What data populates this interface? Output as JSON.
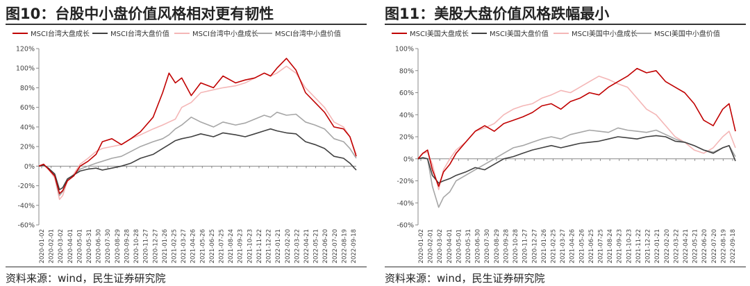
{
  "charts": [
    {
      "id": "left",
      "title": "图10：台股中小盘价值风格相对更有韧性",
      "source": "资料来源：wind，民生证券研究院"
    },
    {
      "id": "right",
      "title": "图11：美股大盘价值风格跌幅最小",
      "source": "资料来源：wind，民生证券研究院"
    }
  ],
  "chart_data": [
    {
      "type": "line",
      "title": "图10：台股中小盘价值风格相对更有韧性",
      "ylim": [
        -60,
        120
      ],
      "y_ticks": [
        "-60%",
        "-40%",
        "-20%",
        "0%",
        "20%",
        "40%",
        "60%",
        "80%",
        "100%",
        "120%"
      ],
      "y_tick_values": [
        -60,
        -40,
        -20,
        0,
        20,
        40,
        60,
        80,
        100,
        120
      ],
      "legend_position": "top",
      "grid": false,
      "x_ticks": [
        "2020-01-02",
        "2020-02-01",
        "2020-03-02",
        "2020-04-01",
        "2020-05-01",
        "2020-05-31",
        "2020-06-30",
        "2020-07-30",
        "2020-08-29",
        "2020-09-28",
        "2020-10-28",
        "2020-11-27",
        "2020-12-27",
        "2021-01-26",
        "2021-02-25",
        "2021-03-27",
        "2021-04-26",
        "2021-05-26",
        "2021-06-25",
        "2021-07-25",
        "2021-08-24",
        "2021-09-23",
        "2021-10-23",
        "2021-11-22",
        "2021-12-22",
        "2022-01-21",
        "2022-02-20",
        "2022-03-22",
        "2022-04-21",
        "2022-05-21",
        "2022-06-20",
        "2022-07-20",
        "2022-08-19",
        "2022-09-18"
      ],
      "series_x": [
        0,
        0.015,
        0.03,
        0.05,
        0.065,
        0.075,
        0.09,
        0.11,
        0.13,
        0.155,
        0.18,
        0.2,
        0.23,
        0.26,
        0.29,
        0.32,
        0.36,
        0.39,
        0.41,
        0.43,
        0.45,
        0.48,
        0.51,
        0.55,
        0.58,
        0.62,
        0.65,
        0.68,
        0.71,
        0.73,
        0.75,
        0.78,
        0.81,
        0.84,
        0.87,
        0.9,
        0.93,
        0.96,
        0.98,
        1.0
      ],
      "series": [
        {
          "name": "MSCI台湾大盘成长",
          "color": "#c00000",
          "values": [
            0,
            2,
            -3,
            -10,
            -28,
            -25,
            -15,
            -10,
            0,
            5,
            12,
            25,
            28,
            22,
            28,
            35,
            50,
            75,
            95,
            85,
            90,
            72,
            85,
            80,
            92,
            85,
            88,
            90,
            95,
            92,
            100,
            110,
            98,
            75,
            65,
            55,
            40,
            38,
            30,
            10
          ]
        },
        {
          "name": "MSCI台湾大盘价值",
          "color": "#404040",
          "values": [
            0,
            1,
            -2,
            -8,
            -24,
            -22,
            -13,
            -9,
            -5,
            -3,
            -2,
            -4,
            -2,
            0,
            3,
            8,
            12,
            18,
            22,
            26,
            28,
            30,
            33,
            30,
            34,
            32,
            30,
            33,
            36,
            38,
            36,
            34,
            33,
            25,
            22,
            18,
            10,
            8,
            3,
            -4
          ]
        },
        {
          "name": "MSCI台湾中小盘成长",
          "color": "#f4b6b6",
          "values": [
            0,
            1,
            -3,
            -12,
            -34,
            -30,
            -15,
            -8,
            2,
            8,
            15,
            18,
            20,
            22,
            28,
            32,
            38,
            42,
            45,
            48,
            60,
            65,
            75,
            78,
            80,
            82,
            85,
            90,
            95,
            92,
            95,
            102,
            95,
            80,
            70,
            60,
            45,
            40,
            30,
            12
          ]
        },
        {
          "name": "MSCI台湾中小盘价值",
          "color": "#a6a6a6",
          "values": [
            0,
            1,
            -2,
            -10,
            -30,
            -26,
            -14,
            -9,
            -3,
            0,
            3,
            5,
            8,
            10,
            15,
            20,
            25,
            28,
            32,
            38,
            42,
            50,
            45,
            40,
            45,
            42,
            44,
            48,
            52,
            50,
            55,
            52,
            53,
            45,
            42,
            38,
            28,
            25,
            18,
            8
          ]
        }
      ]
    },
    {
      "type": "line",
      "title": "图11：美股大盘价值风格跌幅最小",
      "ylim": [
        -60,
        100
      ],
      "y_ticks": [
        "-60%",
        "-40%",
        "-20%",
        "0%",
        "20%",
        "40%",
        "60%",
        "80%",
        "100%"
      ],
      "y_tick_values": [
        -60,
        -40,
        -20,
        0,
        20,
        40,
        60,
        80,
        100
      ],
      "legend_position": "top",
      "grid": false,
      "x_ticks": [
        "2020-01-02",
        "2020-02-01",
        "2020-03-02",
        "2020-04-01",
        "2020-05-01",
        "2020-05-31",
        "2020-06-30",
        "2020-07-30",
        "2020-08-29",
        "2020-09-28",
        "2020-10-28",
        "2020-11-27",
        "2020-12-27",
        "2021-01-26",
        "2021-02-25",
        "2021-03-27",
        "2021-04-26",
        "2021-05-26",
        "2021-06-25",
        "2021-07-25",
        "2021-08-24",
        "2021-09-23",
        "2021-10-23",
        "2021-11-22",
        "2021-12-22",
        "2022-01-21",
        "2022-02-20",
        "2022-03-22",
        "2022-04-21",
        "2022-05-21",
        "2022-06-20",
        "2022-07-20",
        "2022-08-19",
        "2022-09-18"
      ],
      "series_x": [
        0,
        0.015,
        0.03,
        0.045,
        0.065,
        0.08,
        0.1,
        0.12,
        0.15,
        0.18,
        0.21,
        0.24,
        0.27,
        0.3,
        0.33,
        0.36,
        0.39,
        0.42,
        0.45,
        0.48,
        0.51,
        0.54,
        0.57,
        0.6,
        0.63,
        0.66,
        0.69,
        0.72,
        0.75,
        0.78,
        0.81,
        0.84,
        0.87,
        0.9,
        0.93,
        0.96,
        0.98,
        1.0
      ],
      "series": [
        {
          "name": "MSCI美国大盘成长",
          "color": "#c00000",
          "values": [
            0,
            5,
            8,
            -10,
            -25,
            -12,
            -5,
            5,
            15,
            25,
            30,
            25,
            32,
            35,
            38,
            42,
            48,
            50,
            45,
            52,
            55,
            60,
            58,
            65,
            70,
            75,
            82,
            78,
            80,
            70,
            65,
            60,
            50,
            35,
            30,
            45,
            50,
            25
          ]
        },
        {
          "name": "MSCI美国大盘价值",
          "color": "#404040",
          "values": [
            0,
            1,
            0,
            -15,
            -22,
            -20,
            -18,
            -15,
            -12,
            -8,
            -10,
            -5,
            0,
            2,
            5,
            8,
            10,
            12,
            10,
            12,
            14,
            15,
            16,
            18,
            20,
            19,
            18,
            20,
            21,
            20,
            16,
            15,
            12,
            8,
            5,
            10,
            12,
            -2
          ]
        },
        {
          "name": "MSCI美国中小盘成长",
          "color": "#f4b6b6",
          "values": [
            0,
            5,
            6,
            -5,
            -28,
            -10,
            0,
            8,
            15,
            25,
            28,
            32,
            40,
            45,
            48,
            50,
            55,
            58,
            62,
            60,
            65,
            70,
            75,
            72,
            68,
            65,
            55,
            45,
            40,
            30,
            20,
            15,
            8,
            5,
            10,
            20,
            25,
            10
          ]
        },
        {
          "name": "MSCI美国中小盘价值",
          "color": "#a6a6a6",
          "values": [
            0,
            1,
            0,
            -25,
            -44,
            -35,
            -30,
            -20,
            -15,
            -10,
            -5,
            0,
            5,
            10,
            12,
            15,
            18,
            20,
            18,
            22,
            24,
            26,
            25,
            24,
            28,
            26,
            25,
            24,
            26,
            22,
            18,
            15,
            12,
            8,
            6,
            10,
            12,
            2
          ]
        }
      ]
    }
  ]
}
